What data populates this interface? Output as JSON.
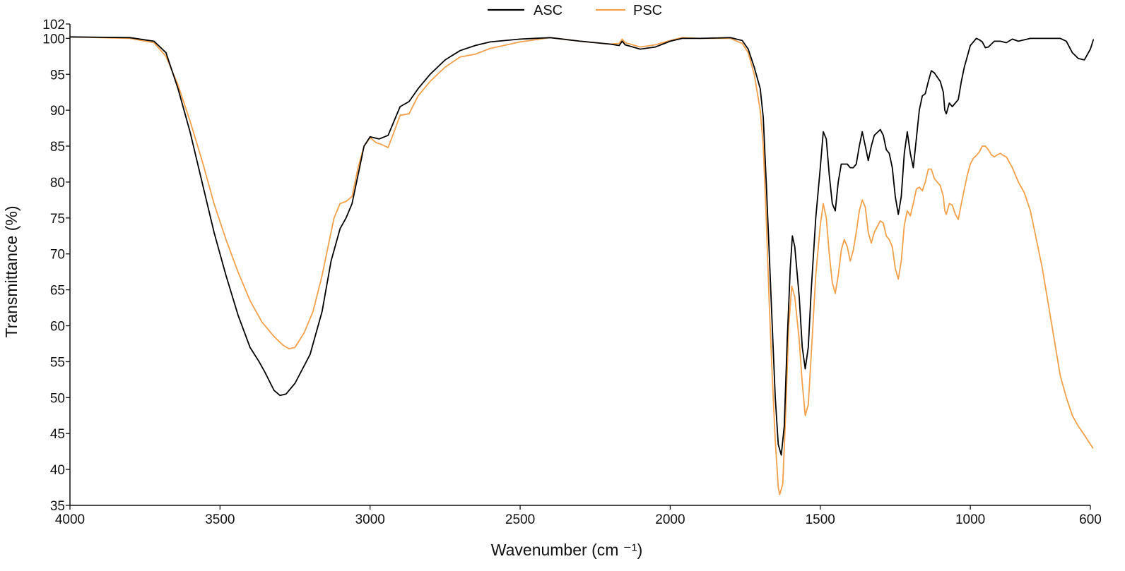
{
  "chart_data": {
    "type": "line",
    "title": "",
    "xlabel": "Wavenumber (cm ⁻¹)",
    "ylabel": "Transmittance (%)",
    "xlim": [
      4000,
      600
    ],
    "x_reversed": true,
    "ylim": [
      35,
      102
    ],
    "grid": false,
    "legend_position": "top-center",
    "x_ticks": [
      4000,
      3500,
      3000,
      2500,
      2000,
      1500,
      1000,
      600
    ],
    "x_tick_labels": [
      "4000",
      "3500",
      "3000",
      "2500",
      "2000",
      "1500",
      "1000",
      "600"
    ],
    "y_ticks": [
      35,
      40,
      45,
      50,
      55,
      60,
      65,
      70,
      75,
      80,
      85,
      90,
      95,
      100,
      102
    ],
    "y_tick_labels": [
      "35",
      "40",
      "45",
      "50",
      "55",
      "60",
      "65",
      "70",
      "75",
      "80",
      "85",
      "90",
      "95",
      "100",
      "102"
    ],
    "series": [
      {
        "name": "ASC",
        "color": "#000000",
        "points": [
          [
            4000,
            100.2
          ],
          [
            3800,
            100.1
          ],
          [
            3720,
            99.6
          ],
          [
            3680,
            98
          ],
          [
            3640,
            93
          ],
          [
            3600,
            87
          ],
          [
            3560,
            80
          ],
          [
            3520,
            73
          ],
          [
            3480,
            67
          ],
          [
            3440,
            61.5
          ],
          [
            3400,
            57
          ],
          [
            3370,
            55
          ],
          [
            3350,
            53.5
          ],
          [
            3320,
            51
          ],
          [
            3300,
            50.3
          ],
          [
            3280,
            50.5
          ],
          [
            3250,
            52
          ],
          [
            3200,
            56
          ],
          [
            3160,
            62
          ],
          [
            3130,
            69
          ],
          [
            3100,
            73.5
          ],
          [
            3080,
            75
          ],
          [
            3060,
            77
          ],
          [
            3040,
            81
          ],
          [
            3020,
            85
          ],
          [
            3000,
            86.3
          ],
          [
            2970,
            86
          ],
          [
            2940,
            86.5
          ],
          [
            2920,
            88.5
          ],
          [
            2900,
            90.5
          ],
          [
            2870,
            91.2
          ],
          [
            2840,
            93
          ],
          [
            2800,
            95
          ],
          [
            2750,
            97
          ],
          [
            2700,
            98.3
          ],
          [
            2650,
            99
          ],
          [
            2600,
            99.5
          ],
          [
            2500,
            99.9
          ],
          [
            2400,
            100.1
          ],
          [
            2300,
            99.6
          ],
          [
            2200,
            99.2
          ],
          [
            2170,
            99
          ],
          [
            2160,
            99.6
          ],
          [
            2150,
            99.1
          ],
          [
            2100,
            98.5
          ],
          [
            2050,
            98.8
          ],
          [
            2000,
            99.6
          ],
          [
            1960,
            100
          ],
          [
            1900,
            100
          ],
          [
            1800,
            100.1
          ],
          [
            1760,
            99.7
          ],
          [
            1740,
            98.5
          ],
          [
            1720,
            96
          ],
          [
            1700,
            93
          ],
          [
            1690,
            89
          ],
          [
            1680,
            80
          ],
          [
            1670,
            70
          ],
          [
            1660,
            60
          ],
          [
            1650,
            50
          ],
          [
            1640,
            43.5
          ],
          [
            1630,
            42
          ],
          [
            1620,
            46
          ],
          [
            1610,
            58
          ],
          [
            1600,
            68
          ],
          [
            1593,
            72.5
          ],
          [
            1585,
            71
          ],
          [
            1570,
            64
          ],
          [
            1560,
            57
          ],
          [
            1550,
            54
          ],
          [
            1540,
            57
          ],
          [
            1530,
            65
          ],
          [
            1515,
            75
          ],
          [
            1500,
            82
          ],
          [
            1490,
            87
          ],
          [
            1480,
            86
          ],
          [
            1470,
            81
          ],
          [
            1460,
            77
          ],
          [
            1450,
            76
          ],
          [
            1440,
            80
          ],
          [
            1430,
            82.5
          ],
          [
            1410,
            82.5
          ],
          [
            1400,
            82
          ],
          [
            1390,
            82
          ],
          [
            1380,
            82.5
          ],
          [
            1370,
            85
          ],
          [
            1360,
            87
          ],
          [
            1350,
            85
          ],
          [
            1340,
            83
          ],
          [
            1330,
            85
          ],
          [
            1320,
            86.5
          ],
          [
            1300,
            87.3
          ],
          [
            1290,
            86.5
          ],
          [
            1280,
            84.5
          ],
          [
            1270,
            84
          ],
          [
            1260,
            82
          ],
          [
            1250,
            78
          ],
          [
            1240,
            75.5
          ],
          [
            1230,
            78
          ],
          [
            1220,
            84
          ],
          [
            1210,
            87
          ],
          [
            1200,
            84
          ],
          [
            1190,
            82
          ],
          [
            1180,
            86
          ],
          [
            1170,
            90
          ],
          [
            1160,
            92
          ],
          [
            1150,
            92.3
          ],
          [
            1140,
            94
          ],
          [
            1130,
            95.5
          ],
          [
            1120,
            95.2
          ],
          [
            1100,
            94
          ],
          [
            1090,
            92.5
          ],
          [
            1085,
            90
          ],
          [
            1080,
            89.5
          ],
          [
            1070,
            91
          ],
          [
            1060,
            90.5
          ],
          [
            1050,
            91
          ],
          [
            1040,
            91.5
          ],
          [
            1030,
            94
          ],
          [
            1020,
            96
          ],
          [
            1010,
            97.5
          ],
          [
            1000,
            99
          ],
          [
            990,
            99.5
          ],
          [
            980,
            100
          ],
          [
            970,
            99.8
          ],
          [
            960,
            99.5
          ],
          [
            950,
            98.7
          ],
          [
            940,
            98.8
          ],
          [
            920,
            99.6
          ],
          [
            900,
            99.6
          ],
          [
            880,
            99.4
          ],
          [
            860,
            99.9
          ],
          [
            840,
            99.6
          ],
          [
            800,
            100
          ],
          [
            700,
            100
          ],
          [
            680,
            99.6
          ],
          [
            660,
            98
          ],
          [
            640,
            97.2
          ],
          [
            620,
            97
          ],
          [
            600,
            98.5
          ],
          [
            590,
            99.8
          ]
        ]
      },
      {
        "name": "PSC",
        "color": "#f4a04a",
        "points": [
          [
            4000,
            100.2
          ],
          [
            3800,
            100
          ],
          [
            3720,
            99.4
          ],
          [
            3680,
            97.5
          ],
          [
            3640,
            93.5
          ],
          [
            3600,
            88.5
          ],
          [
            3560,
            83
          ],
          [
            3520,
            77
          ],
          [
            3480,
            72
          ],
          [
            3440,
            67.5
          ],
          [
            3400,
            63.5
          ],
          [
            3360,
            60.5
          ],
          [
            3320,
            58.5
          ],
          [
            3290,
            57.3
          ],
          [
            3270,
            56.8
          ],
          [
            3250,
            57
          ],
          [
            3220,
            59
          ],
          [
            3190,
            62
          ],
          [
            3160,
            67
          ],
          [
            3140,
            71
          ],
          [
            3120,
            75
          ],
          [
            3100,
            77
          ],
          [
            3080,
            77.3
          ],
          [
            3060,
            78
          ],
          [
            3040,
            82
          ],
          [
            3020,
            85
          ],
          [
            3000,
            86.2
          ],
          [
            2980,
            85.5
          ],
          [
            2960,
            85.2
          ],
          [
            2940,
            84.8
          ],
          [
            2920,
            87
          ],
          [
            2900,
            89.3
          ],
          [
            2870,
            89.5
          ],
          [
            2840,
            92
          ],
          [
            2800,
            94
          ],
          [
            2750,
            96
          ],
          [
            2700,
            97.4
          ],
          [
            2650,
            97.8
          ],
          [
            2600,
            98.6
          ],
          [
            2500,
            99.5
          ],
          [
            2400,
            100.1
          ],
          [
            2300,
            99.6
          ],
          [
            2200,
            99.2
          ],
          [
            2170,
            99.3
          ],
          [
            2160,
            99.9
          ],
          [
            2150,
            99.4
          ],
          [
            2100,
            98.8
          ],
          [
            2050,
            99.1
          ],
          [
            2000,
            99.7
          ],
          [
            1960,
            100.1
          ],
          [
            1900,
            100
          ],
          [
            1800,
            100
          ],
          [
            1760,
            99.3
          ],
          [
            1740,
            98
          ],
          [
            1720,
            95
          ],
          [
            1700,
            90
          ],
          [
            1690,
            85
          ],
          [
            1680,
            75
          ],
          [
            1670,
            63
          ],
          [
            1660,
            53
          ],
          [
            1650,
            44
          ],
          [
            1640,
            37.5
          ],
          [
            1635,
            36.5
          ],
          [
            1625,
            38
          ],
          [
            1615,
            48
          ],
          [
            1605,
            60
          ],
          [
            1595,
            65.5
          ],
          [
            1585,
            64
          ],
          [
            1570,
            58
          ],
          [
            1560,
            52
          ],
          [
            1550,
            47.5
          ],
          [
            1540,
            49
          ],
          [
            1530,
            56
          ],
          [
            1515,
            67
          ],
          [
            1500,
            74
          ],
          [
            1490,
            77
          ],
          [
            1480,
            75
          ],
          [
            1470,
            70
          ],
          [
            1460,
            66
          ],
          [
            1450,
            64.5
          ],
          [
            1440,
            67
          ],
          [
            1430,
            70.5
          ],
          [
            1420,
            72
          ],
          [
            1410,
            71
          ],
          [
            1400,
            69
          ],
          [
            1390,
            70.5
          ],
          [
            1380,
            73
          ],
          [
            1370,
            76
          ],
          [
            1360,
            77.5
          ],
          [
            1350,
            76.5
          ],
          [
            1340,
            73
          ],
          [
            1330,
            71.5
          ],
          [
            1320,
            73
          ],
          [
            1300,
            74.6
          ],
          [
            1290,
            74.3
          ],
          [
            1280,
            72.5
          ],
          [
            1270,
            72
          ],
          [
            1260,
            71
          ],
          [
            1250,
            68
          ],
          [
            1240,
            66.5
          ],
          [
            1230,
            69
          ],
          [
            1220,
            74
          ],
          [
            1210,
            76
          ],
          [
            1200,
            75.3
          ],
          [
            1190,
            77
          ],
          [
            1180,
            79
          ],
          [
            1170,
            79.3
          ],
          [
            1160,
            78.8
          ],
          [
            1150,
            80
          ],
          [
            1140,
            81.8
          ],
          [
            1130,
            81.8
          ],
          [
            1120,
            80.5
          ],
          [
            1100,
            79.5
          ],
          [
            1090,
            78
          ],
          [
            1085,
            76
          ],
          [
            1080,
            75.5
          ],
          [
            1070,
            77
          ],
          [
            1060,
            76.8
          ],
          [
            1050,
            75.5
          ],
          [
            1040,
            74.8
          ],
          [
            1030,
            77
          ],
          [
            1020,
            79
          ],
          [
            1010,
            81
          ],
          [
            1000,
            82.5
          ],
          [
            990,
            83.3
          ],
          [
            980,
            83.7
          ],
          [
            970,
            84.2
          ],
          [
            960,
            85
          ],
          [
            950,
            85
          ],
          [
            940,
            84.5
          ],
          [
            930,
            83.8
          ],
          [
            920,
            83.5
          ],
          [
            910,
            83.8
          ],
          [
            900,
            84
          ],
          [
            890,
            83.7
          ],
          [
            880,
            83.5
          ],
          [
            860,
            82
          ],
          [
            840,
            80
          ],
          [
            820,
            78.5
          ],
          [
            800,
            76
          ],
          [
            780,
            72
          ],
          [
            760,
            68
          ],
          [
            740,
            63
          ],
          [
            720,
            58
          ],
          [
            700,
            53
          ],
          [
            680,
            50
          ],
          [
            660,
            47.5
          ],
          [
            640,
            46
          ],
          [
            620,
            44.8
          ],
          [
            600,
            43.5
          ],
          [
            592,
            43
          ]
        ]
      }
    ]
  }
}
